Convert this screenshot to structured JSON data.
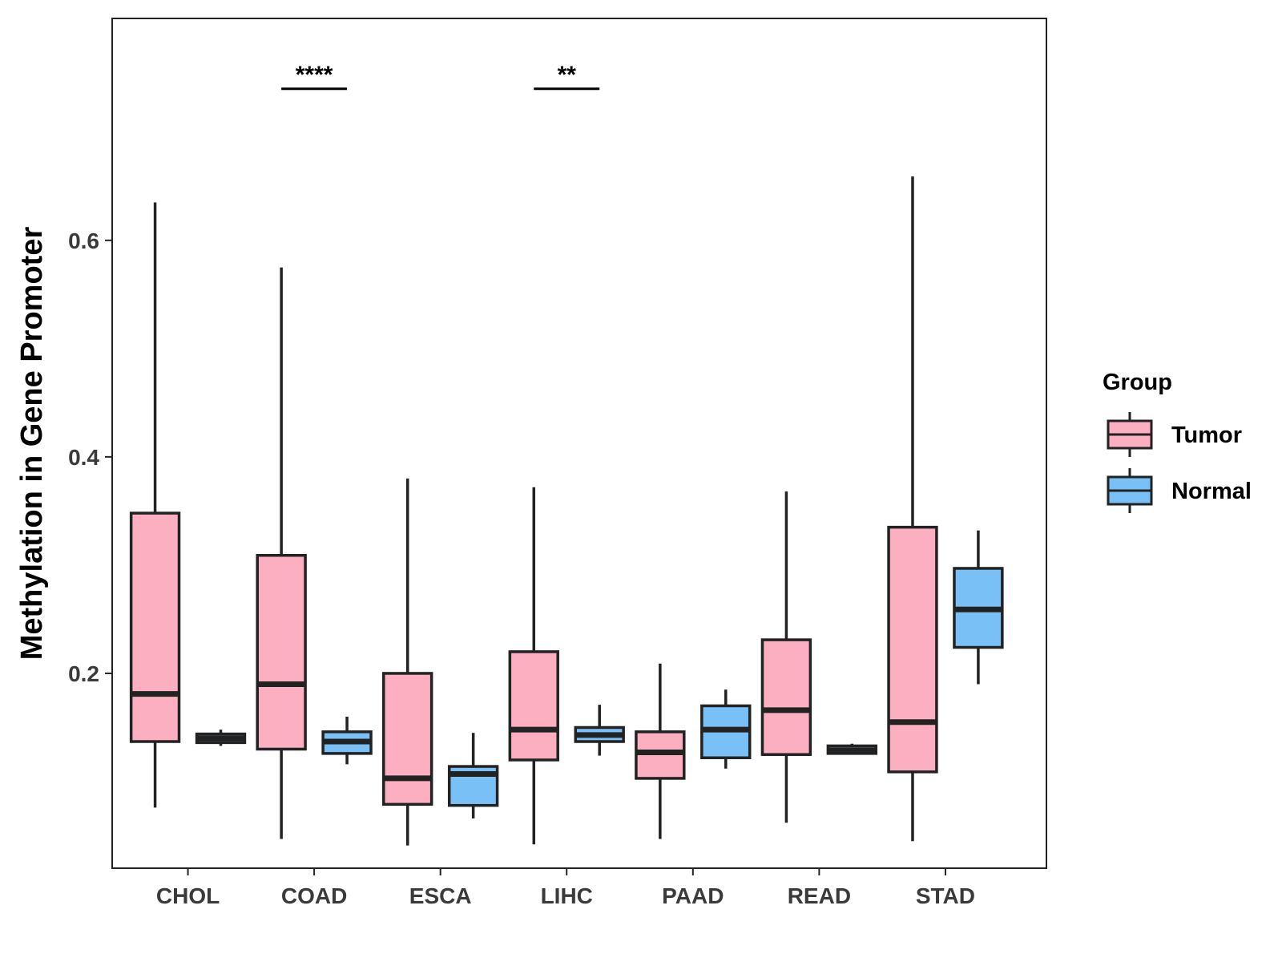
{
  "chart_data": {
    "type": "boxplot",
    "title": "",
    "xlabel": "",
    "ylabel": "Methylation in Gene Promoter",
    "ylim": [
      0.02,
      0.805
    ],
    "yticks": [
      0.2,
      0.4,
      0.6
    ],
    "ytick_labels": [
      "0.2",
      "0.4",
      "0.6"
    ],
    "categories": [
      "CHOL",
      "COAD",
      "ESCA",
      "LIHC",
      "PAAD",
      "READ",
      "STAD"
    ],
    "legend": {
      "title": "Group",
      "position": "right",
      "entries": [
        {
          "name": "Tumor",
          "color": "#FBAFC1"
        },
        {
          "name": "Normal",
          "color": "#79C0F7"
        }
      ]
    },
    "series": [
      {
        "name": "Tumor",
        "color": "#FBAFC1",
        "boxes": [
          {
            "category": "CHOL",
            "min": 0.076,
            "q1": 0.137,
            "median": 0.181,
            "q3": 0.348,
            "max": 0.635
          },
          {
            "category": "COAD",
            "min": 0.047,
            "q1": 0.13,
            "median": 0.19,
            "q3": 0.309,
            "max": 0.575
          },
          {
            "category": "ESCA",
            "min": 0.041,
            "q1": 0.079,
            "median": 0.103,
            "q3": 0.2,
            "max": 0.38
          },
          {
            "category": "LIHC",
            "min": 0.042,
            "q1": 0.12,
            "median": 0.148,
            "q3": 0.22,
            "max": 0.372
          },
          {
            "category": "PAAD",
            "min": 0.047,
            "q1": 0.103,
            "median": 0.127,
            "q3": 0.146,
            "max": 0.209
          },
          {
            "category": "READ",
            "min": 0.062,
            "q1": 0.125,
            "median": 0.166,
            "q3": 0.231,
            "max": 0.368
          },
          {
            "category": "STAD",
            "min": 0.045,
            "q1": 0.109,
            "median": 0.155,
            "q3": 0.335,
            "max": 0.659
          }
        ]
      },
      {
        "name": "Normal",
        "color": "#79C0F7",
        "boxes": [
          {
            "category": "CHOL",
            "min": 0.133,
            "q1": 0.136,
            "median": 0.14,
            "q3": 0.144,
            "max": 0.148
          },
          {
            "category": "COAD",
            "min": 0.116,
            "q1": 0.126,
            "median": 0.137,
            "q3": 0.146,
            "max": 0.16
          },
          {
            "category": "ESCA",
            "min": 0.066,
            "q1": 0.078,
            "median": 0.107,
            "q3": 0.114,
            "max": 0.145
          },
          {
            "category": "LIHC",
            "min": 0.124,
            "q1": 0.137,
            "median": 0.143,
            "q3": 0.15,
            "max": 0.171
          },
          {
            "category": "PAAD",
            "min": 0.112,
            "q1": 0.122,
            "median": 0.148,
            "q3": 0.17,
            "max": 0.185
          },
          {
            "category": "READ",
            "min": 0.125,
            "q1": 0.126,
            "median": 0.129,
            "q3": 0.133,
            "max": 0.135
          },
          {
            "category": "STAD",
            "min": 0.19,
            "q1": 0.224,
            "median": 0.259,
            "q3": 0.297,
            "max": 0.332
          }
        ]
      }
    ],
    "significance": [
      {
        "category": "COAD",
        "label": "****",
        "y": 0.74
      },
      {
        "category": "LIHC",
        "label": "**",
        "y": 0.74
      }
    ]
  }
}
